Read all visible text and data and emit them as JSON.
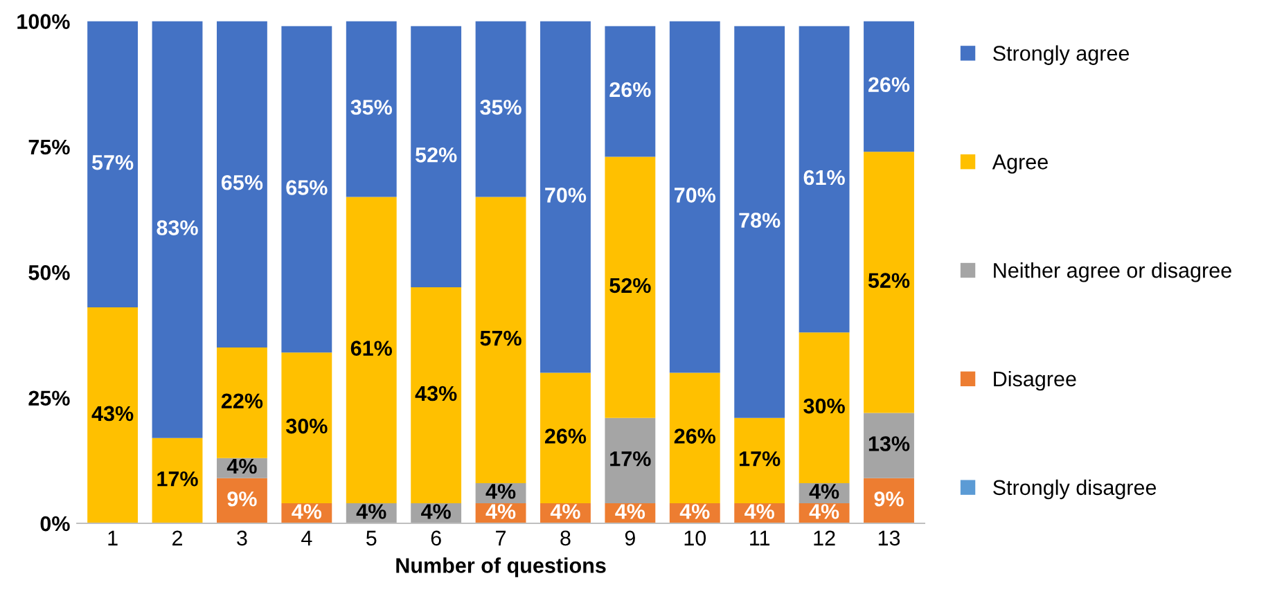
{
  "chart_data": {
    "type": "bar",
    "stacked": true,
    "xlabel": "Number of questions",
    "categories": [
      "1",
      "2",
      "3",
      "4",
      "5",
      "6",
      "7",
      "8",
      "9",
      "10",
      "11",
      "12",
      "13"
    ],
    "ylim": [
      0,
      100
    ],
    "yticks": [
      {
        "value": 0,
        "label": "0%"
      },
      {
        "value": 25,
        "label": "25%"
      },
      {
        "value": 50,
        "label": "50%"
      },
      {
        "value": 75,
        "label": "75%"
      },
      {
        "value": 100,
        "label": "100%"
      }
    ],
    "grid": false,
    "legend": "right",
    "series": [
      {
        "name": "Strongly disagree",
        "color": "#5b9bd5",
        "values": [
          0,
          0,
          0,
          0,
          0,
          0,
          0,
          0,
          0,
          0,
          0,
          0,
          0
        ],
        "value_labels": [
          null,
          null,
          null,
          null,
          null,
          null,
          null,
          null,
          null,
          null,
          null,
          null,
          null
        ]
      },
      {
        "name": "Disagree",
        "color": "#ed7d31",
        "values": [
          0,
          0,
          9,
          4,
          0,
          0,
          4,
          4,
          4,
          4,
          4,
          4,
          9
        ],
        "value_labels": [
          null,
          null,
          "9%",
          "4%",
          null,
          null,
          "4%",
          "4%",
          "4%",
          "4%",
          "4%",
          "4%",
          "9%"
        ]
      },
      {
        "name": "Neither agree or disagree",
        "color": "#a5a5a5",
        "values": [
          0,
          0,
          4,
          0,
          4,
          4,
          4,
          0,
          17,
          0,
          0,
          4,
          13
        ],
        "value_labels": [
          null,
          null,
          "4%",
          null,
          "4%",
          "4%",
          "4%",
          null,
          "17%",
          null,
          null,
          "4%",
          "13%"
        ]
      },
      {
        "name": "Agree",
        "color": "#ffc000",
        "values": [
          43,
          17,
          22,
          30,
          61,
          43,
          57,
          26,
          52,
          26,
          17,
          30,
          52
        ],
        "value_labels": [
          "43%",
          "17%",
          "22%",
          "30%",
          "61%",
          "43%",
          "57%",
          "26%",
          "52%",
          "26%",
          "17%",
          "30%",
          "52%"
        ]
      },
      {
        "name": "Strongly agree",
        "color": "#4472c4",
        "values": [
          57,
          83,
          65,
          65,
          35,
          52,
          35,
          70,
          26,
          70,
          78,
          61,
          26
        ],
        "value_labels": [
          "57%",
          "83%",
          "65%",
          "65%",
          "35%",
          "52%",
          "35%",
          "70%",
          "26%",
          "70%",
          "78%",
          "61%",
          "26%"
        ]
      }
    ]
  }
}
